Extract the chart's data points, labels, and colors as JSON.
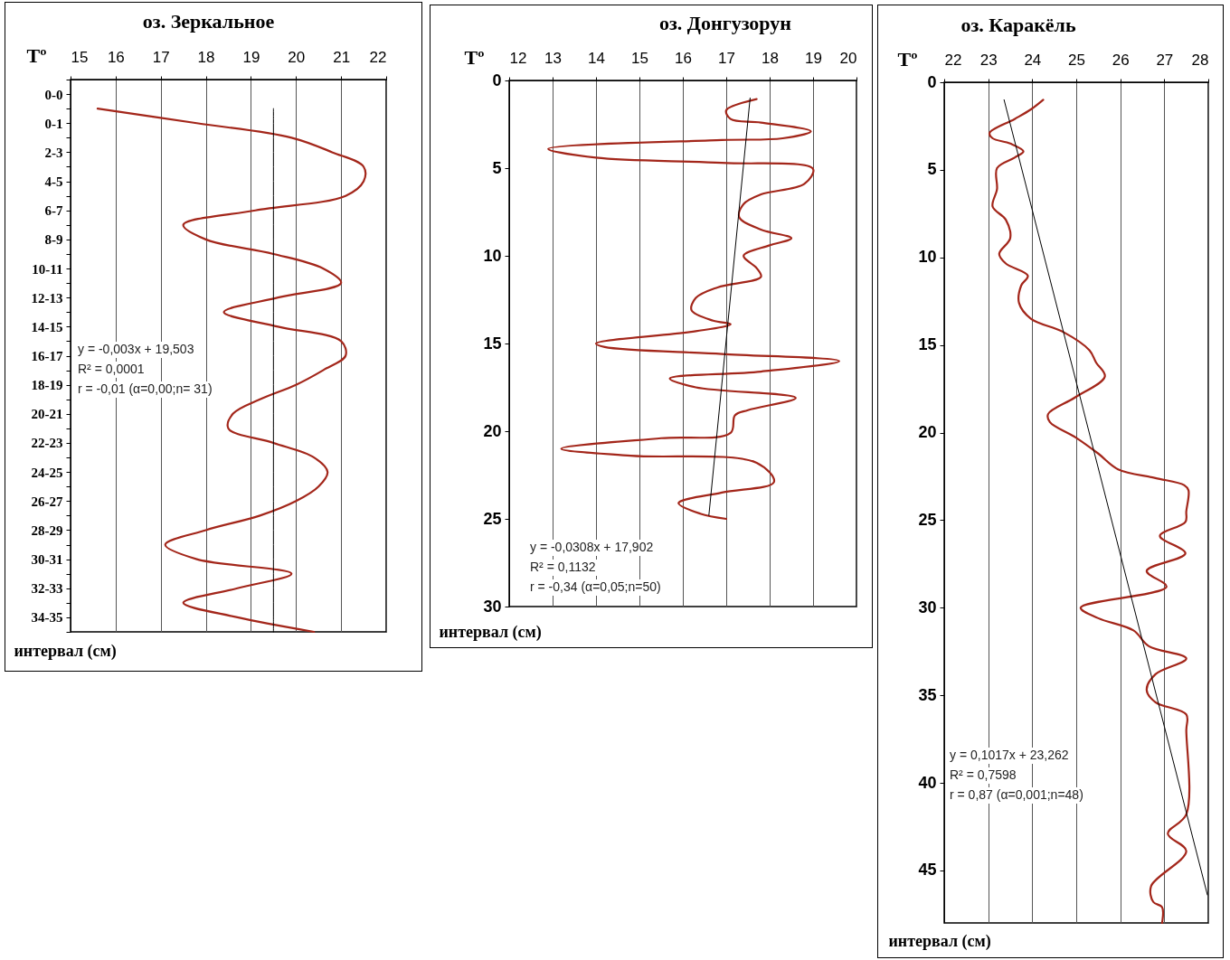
{
  "chart_data": [
    {
      "type": "line",
      "orientation": "horizontal",
      "title": "оз. Зеркальное",
      "xlabel": "Tº",
      "ylabel": "интервал (см)",
      "categories": [
        null,
        "0-0",
        null,
        "0-1",
        null,
        "2-3",
        null,
        "4-5",
        null,
        "6-7",
        null,
        "8-9",
        null,
        "10-11",
        null,
        "12-13",
        null,
        "14-15",
        null,
        "16-17",
        null,
        "18-19",
        null,
        "20-21",
        null,
        "22-23",
        null,
        "24-25",
        null,
        "26-27",
        null,
        "28-29",
        null,
        "30-31",
        null,
        "32-33",
        null,
        "34-35",
        null
      ],
      "xlim": [
        15,
        22
      ],
      "xticks": [
        15,
        16,
        17,
        18,
        19,
        20,
        21,
        22
      ],
      "grid": "x",
      "series": [
        {
          "color": "#a3261a",
          "values": [
            null,
            null,
            15.6,
            17.8,
            19.9,
            20.8,
            21.5,
            21.5,
            21.1,
            19.1,
            17.5,
            18.0,
            19.5,
            20.6,
            21.0,
            19.6,
            18.4,
            19.6,
            21.0,
            21.1,
            20.6,
            20.0,
            19.2,
            18.6,
            18.5,
            19.5,
            20.4,
            20.7,
            20.5,
            20.0,
            19.2,
            18.0,
            17.1,
            17.8,
            19.9,
            18.7,
            17.5,
            18.7,
            20.4
          ]
        },
        {
          "color": "#000000",
          "values": [
            null,
            null,
            19.5,
            19.5,
            19.5,
            19.5,
            19.5,
            19.5,
            19.5,
            19.5,
            19.5,
            19.5,
            19.5,
            19.5,
            19.5,
            19.5,
            19.5,
            19.5,
            19.5,
            19.5,
            19.5,
            19.5,
            19.5,
            19.5,
            19.5,
            19.5,
            19.5,
            19.5,
            19.5,
            19.5,
            19.5,
            19.5,
            19.5,
            19.5,
            19.5,
            19.5,
            19.5,
            19.5,
            19.5
          ]
        }
      ],
      "annotations": [
        "y = -0,003x + 19,503",
        "R² = 0,0001",
        "r = -0,01 (α=0,00;n= 31)"
      ]
    },
    {
      "type": "line",
      "title": "оз. Донгузорун",
      "xlabel": "Tº",
      "ylabel": "интервал (см)",
      "xlim": [
        12,
        20
      ],
      "xticks": [
        12,
        13,
        14,
        15,
        16,
        17,
        18,
        19,
        20
      ],
      "ylim": [
        30,
        0
      ],
      "yticks": [
        0,
        5,
        10,
        15,
        20,
        25,
        30
      ],
      "grid": "x",
      "series": [
        {
          "color": "#a3261a",
          "x": [
            17.7,
            17.0,
            17.1,
            17.8,
            18.95,
            18.3,
            16.9,
            12.9,
            14.0,
            16.9,
            19.0,
            18.8,
            17.8,
            17.4,
            17.3,
            17.8,
            18.5,
            18.0,
            17.4,
            17.7,
            17.8,
            16.8,
            16.3,
            16.2,
            16.7,
            17.1,
            16.3,
            14.0,
            14.2,
            16.9,
            19.6,
            17.8,
            15.7,
            16.3,
            18.6,
            17.5,
            17.2,
            17.1,
            15.5,
            13.2,
            14.8,
            17.7,
            18.1,
            16.9,
            15.9,
            16.4,
            17.0
          ],
          "values": [
            1.06,
            1.7,
            2.2,
            2.4,
            2.9,
            3.3,
            3.4,
            3.9,
            4.4,
            4.7,
            5.05,
            5.9,
            6.5,
            7.05,
            7.8,
            8.5,
            9.0,
            9.4,
            10.0,
            10.7,
            11.2,
            11.8,
            12.4,
            13.1,
            13.7,
            13.9,
            14.3,
            15.0,
            15.2,
            15.6,
            16.0,
            16.6,
            17.0,
            17.5,
            18.1,
            18.8,
            19.1,
            20.1,
            20.4,
            21.0,
            21.4,
            21.8,
            22.9,
            23.5,
            24.1,
            24.7,
            25.0
          ]
        },
        {
          "color": "#000000",
          "x": [
            17.55,
            16.6
          ],
          "values": [
            1.0,
            24.8
          ]
        }
      ],
      "annotations": [
        "y = -0,0308x + 17,902",
        "R² = 0,1132",
        "r = -0,34 (α=0,05;n=50)"
      ]
    },
    {
      "type": "line",
      "title": "оз. Каракёль",
      "xlabel": "Tº",
      "ylabel": "интервал (см)",
      "xlim": [
        22,
        28
      ],
      "xticks": [
        22,
        23,
        24,
        25,
        26,
        27,
        28
      ],
      "ylim": [
        48,
        0
      ],
      "yticks": [
        0,
        5,
        10,
        15,
        20,
        25,
        30,
        35,
        40,
        45
      ],
      "grid": "x",
      "series": [
        {
          "color": "#a3261a",
          "x": [
            24.25,
            23.97,
            23.6,
            23.03,
            23.1,
            23.5,
            23.8,
            23.6,
            23.2,
            23.2,
            23.1,
            23.4,
            23.5,
            23.25,
            23.4,
            23.9,
            23.75,
            23.7,
            23.97,
            24.7,
            25.3,
            25.45,
            25.65,
            24.97,
            24.36,
            24.4,
            25.0,
            25.5,
            25.95,
            26.8,
            27.45,
            27.55,
            27.5,
            27.48,
            26.9,
            27.48,
            26.6,
            27.05,
            25.1,
            25.5,
            26.3,
            26.65,
            27.5,
            26.8,
            26.6,
            26.8,
            27.5,
            27.5,
            27.5,
            27.08,
            27.5,
            26.7,
            26.75,
            26.95,
            26.95
          ],
          "values": [
            1.0,
            1.55,
            2.1,
            2.9,
            3.2,
            3.5,
            3.95,
            4.3,
            4.9,
            6.1,
            7.1,
            7.85,
            8.9,
            9.8,
            10.35,
            11.05,
            11.6,
            12.6,
            13.5,
            14.25,
            15.3,
            16.0,
            16.8,
            18.0,
            18.95,
            19.4,
            20.3,
            21.2,
            22.1,
            22.6,
            23.0,
            23.3,
            24.5,
            25.1,
            25.9,
            26.9,
            27.9,
            28.8,
            30.0,
            30.6,
            31.3,
            32.2,
            32.9,
            33.8,
            34.7,
            35.4,
            36.1,
            37.0,
            41.8,
            42.9,
            43.9,
            45.9,
            46.8,
            47.1,
            48.0
          ]
        },
        {
          "color": "#000000",
          "x": [
            23.36,
            27.98
          ],
          "values": [
            1.0,
            46.4
          ]
        }
      ],
      "annotations": [
        "y = 0,1017x + 23,262",
        "R² = 0,7598",
        "r =  0,87 (α=0,001;n=48)"
      ]
    }
  ]
}
